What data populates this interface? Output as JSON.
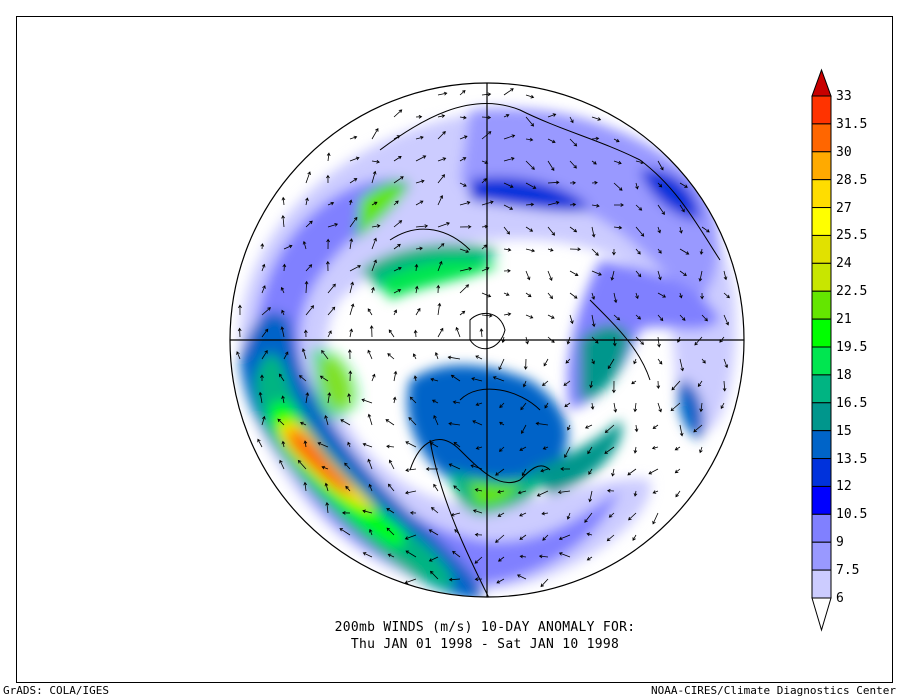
{
  "title": {
    "line1": "200mb WINDS (m/s)   10-DAY ANOMALY FOR:",
    "line2": "Thu JAN 01 1998 - Sat JAN 10 1998"
  },
  "footer": {
    "left": "GrADS: COLA/IGES",
    "right": "NOAA-CIRES/Climate Diagnostics Center"
  },
  "map": {
    "projection": "north polar stereographic",
    "variable": "200mb wind anomaly vectors with speed shading"
  },
  "colorbar": {
    "labels": [
      "33",
      "31.5",
      "30",
      "28.5",
      "27",
      "25.5",
      "24",
      "22.5",
      "21",
      "19.5",
      "18",
      "16.5",
      "15",
      "13.5",
      "12",
      "10.5",
      "9",
      "7.5",
      "6"
    ],
    "over_color": "#c80000",
    "under_color": "#ffffff",
    "colors": [
      "#ff3300",
      "#ff6600",
      "#ffaa00",
      "#ffdd00",
      "#ffff00",
      "#e1e100",
      "#c8e600",
      "#64e600",
      "#00ff00",
      "#00e650",
      "#00b482",
      "#00968c",
      "#0064c8",
      "#0032dc",
      "#0000ff",
      "#8080ff",
      "#9999ff",
      "#ccccff"
    ]
  }
}
